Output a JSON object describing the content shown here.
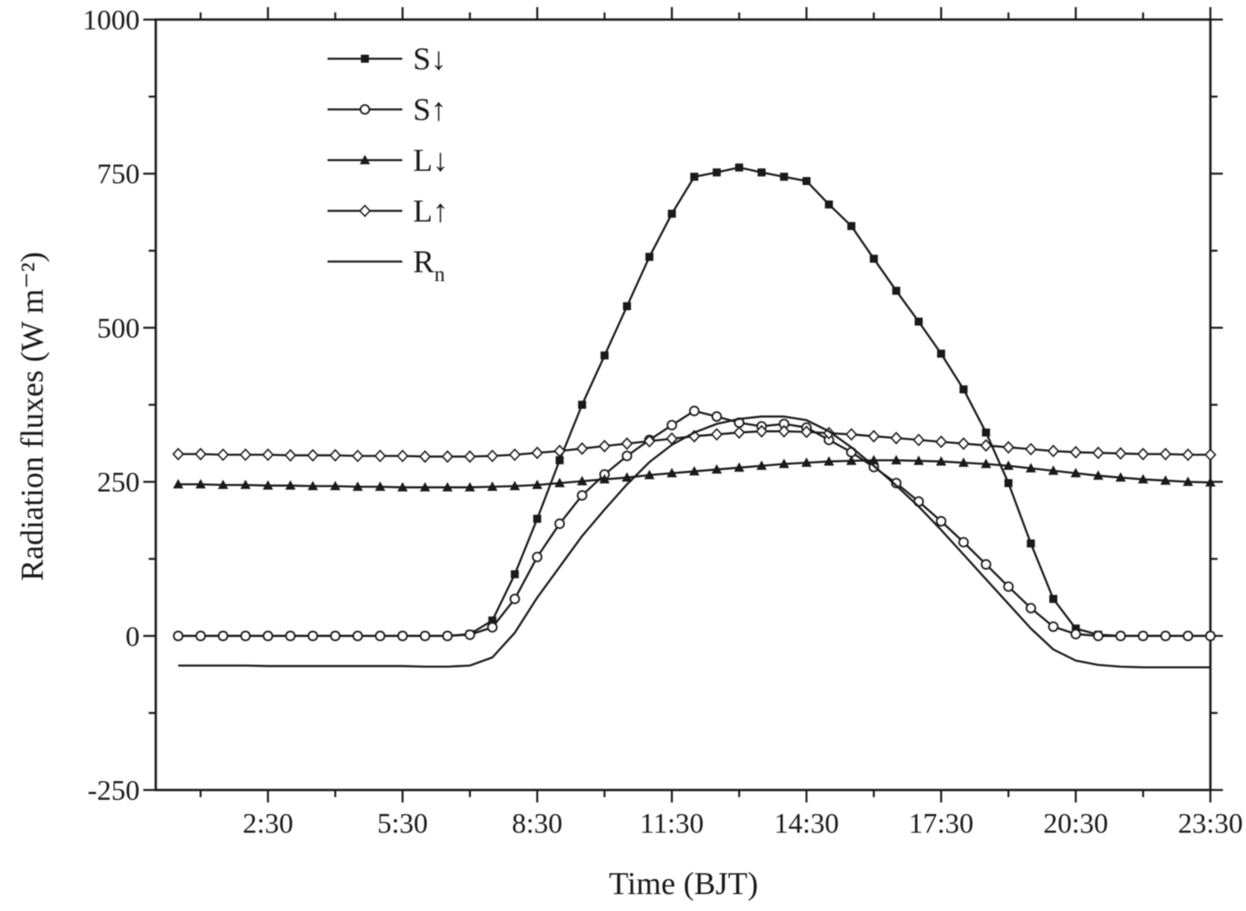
{
  "figure": {
    "background": "#ffffff",
    "ink": "#1a1a1a"
  },
  "chart_data": {
    "type": "line",
    "title": "",
    "xlabel": "Time (BJT)",
    "ylabel": "Radiation fluxes (W m⁻²)",
    "xlim": [
      0,
      23.5
    ],
    "ylim": [
      -250,
      1000
    ],
    "grid": false,
    "legend_position": "upper-left-inside",
    "x_major_ticks": [
      2.5,
      5.5,
      8.5,
      11.5,
      14.5,
      17.5,
      20.5,
      23.5
    ],
    "x_major_tick_labels": [
      "2:30",
      "5:30",
      "8:30",
      "11:30",
      "14:30",
      "17:30",
      "20:30",
      "23:30"
    ],
    "x_minor_ticks": [
      1.0,
      4.0,
      7.0,
      10.0,
      13.0,
      16.0,
      19.0,
      22.0
    ],
    "y_major_ticks": [
      -250,
      0,
      250,
      500,
      750,
      1000
    ],
    "y_major_tick_labels": [
      "-250",
      "0",
      "250",
      "500",
      "750",
      "1000"
    ],
    "y_minor_ticks": [
      -125,
      125,
      375,
      625,
      875
    ],
    "x_hours": [
      0.5,
      1,
      1.5,
      2,
      2.5,
      3,
      3.5,
      4,
      4.5,
      5,
      5.5,
      6,
      6.5,
      7,
      7.5,
      8,
      8.5,
      9,
      9.5,
      10,
      10.5,
      11,
      11.5,
      12,
      12.5,
      13,
      13.5,
      14,
      14.5,
      15,
      15.5,
      16,
      16.5,
      17,
      17.5,
      18,
      18.5,
      19,
      19.5,
      20,
      20.5,
      21,
      21.5,
      22,
      22.5,
      23,
      23.5
    ],
    "series": [
      {
        "id": "sw-down",
        "label": "S↓",
        "label_sub": "",
        "marker": "square-filled",
        "values": [
          0,
          0,
          0,
          0,
          0,
          0,
          0,
          0,
          0,
          0,
          0,
          0,
          0,
          3,
          25,
          100,
          190,
          285,
          375,
          455,
          535,
          615,
          685,
          745,
          752,
          760,
          752,
          745,
          738,
          700,
          665,
          612,
          560,
          510,
          458,
          400,
          330,
          248,
          150,
          60,
          12,
          2,
          0,
          0,
          0,
          0,
          0
        ]
      },
      {
        "id": "sw-up",
        "label": "S↑",
        "label_sub": "",
        "marker": "circle-open",
        "values": [
          0,
          0,
          0,
          0,
          0,
          0,
          0,
          0,
          0,
          0,
          0,
          0,
          0,
          2,
          14,
          60,
          128,
          182,
          228,
          262,
          292,
          318,
          342,
          365,
          356,
          346,
          340,
          344,
          338,
          318,
          298,
          274,
          248,
          218,
          186,
          152,
          116,
          80,
          45,
          15,
          3,
          0,
          0,
          0,
          0,
          0,
          0
        ]
      },
      {
        "id": "lw-down",
        "label": "L↓",
        "label_sub": "",
        "marker": "triangle-filled",
        "values": [
          246,
          246,
          245,
          245,
          244,
          244,
          243,
          243,
          242,
          242,
          241,
          241,
          241,
          241,
          242,
          243,
          245,
          248,
          251,
          254,
          257,
          261,
          264,
          267,
          270,
          273,
          276,
          279,
          281,
          283,
          284,
          285,
          285,
          284,
          283,
          281,
          279,
          276,
          272,
          268,
          264,
          260,
          257,
          254,
          252,
          250,
          249
        ]
      },
      {
        "id": "lw-up",
        "label": "L↑",
        "label_sub": "",
        "marker": "diamond-open",
        "values": [
          295,
          295,
          294,
          294,
          294,
          293,
          293,
          293,
          292,
          292,
          292,
          291,
          291,
          291,
          292,
          294,
          297,
          300,
          304,
          308,
          312,
          316,
          320,
          324,
          327,
          330,
          332,
          332,
          331,
          329,
          327,
          324,
          321,
          318,
          315,
          312,
          309,
          306,
          303,
          300,
          298,
          297,
          296,
          295,
          295,
          294,
          294
        ]
      },
      {
        "id": "net-radiation",
        "label": "R",
        "label_sub": "n",
        "marker": "none",
        "values": [
          -48,
          -48,
          -48,
          -48,
          -49,
          -49,
          -49,
          -49,
          -49,
          -49,
          -49,
          -50,
          -50,
          -48,
          -35,
          5,
          62,
          112,
          162,
          205,
          246,
          282,
          310,
          330,
          344,
          352,
          356,
          356,
          350,
          332,
          306,
          276,
          244,
          210,
          172,
          132,
          92,
          52,
          12,
          -22,
          -40,
          -47,
          -50,
          -51,
          -51,
          -51,
          -51
        ]
      }
    ]
  }
}
